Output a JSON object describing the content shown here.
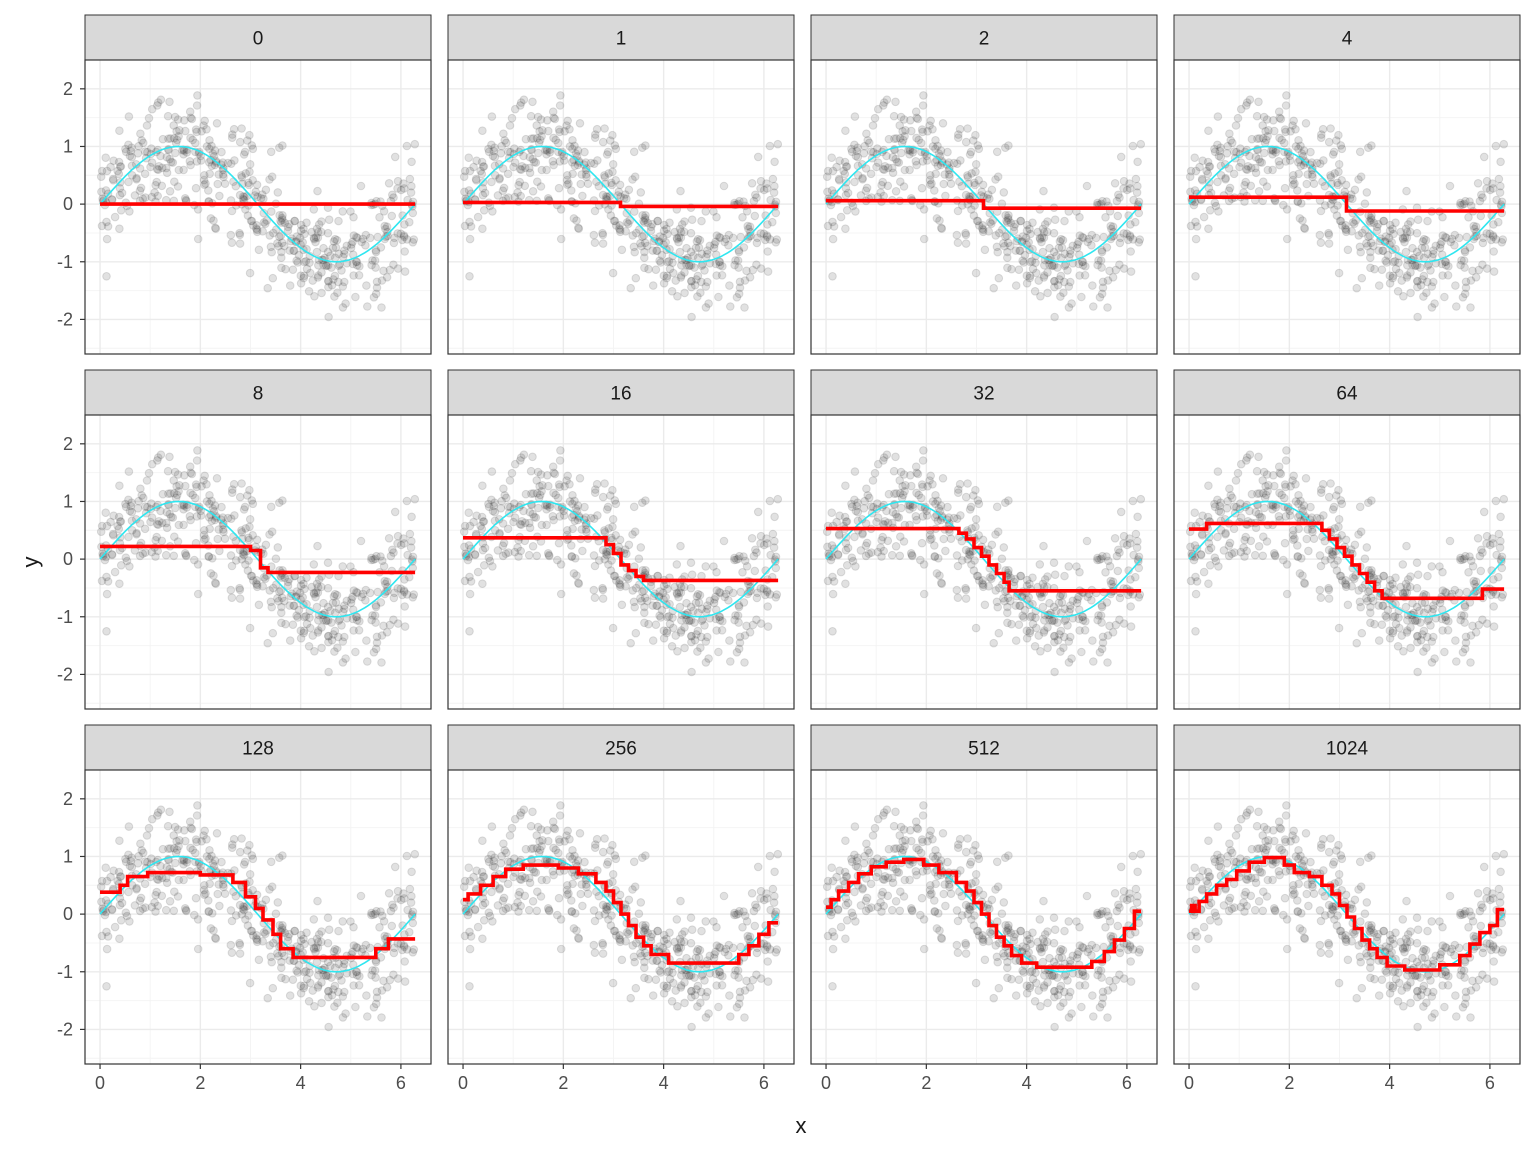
{
  "chart_data": {
    "type": "line",
    "xlabel": "x",
    "ylabel": "y",
    "xlim": [
      -0.3,
      6.6
    ],
    "ylim": [
      -2.6,
      2.5
    ],
    "x_ticks": [
      0,
      2,
      4,
      6
    ],
    "y_ticks": [
      -2,
      -1,
      0,
      1,
      2
    ],
    "grid": true,
    "legend": "none",
    "colors": {
      "true_function": "#2ee6f0",
      "fit": "#ff0000",
      "points": "#333333",
      "strip_bg": "#d9d9d9",
      "panel_border": "#333333",
      "grid_major": "#ebebeb",
      "grid_minor": "#f4f4f4"
    },
    "scatter": {
      "description_n_points": 1000,
      "model": "y = sin(x) + noise(sd 0.5)",
      "x_range": [
        0,
        6.283
      ],
      "opacity": 0.15
    },
    "true_function": {
      "name": "sin(x)",
      "x_range": [
        0,
        6.283
      ]
    },
    "panels": [
      {
        "label": "0",
        "fit": [
          [
            0,
            6.283,
            0.0
          ]
        ]
      },
      {
        "label": "1",
        "fit": [
          [
            0,
            3.14,
            0.03
          ],
          [
            3.14,
            6.283,
            -0.04
          ]
        ]
      },
      {
        "label": "2",
        "fit": [
          [
            0,
            3.14,
            0.06
          ],
          [
            3.14,
            6.283,
            -0.07
          ]
        ]
      },
      {
        "label": "4",
        "fit": [
          [
            0,
            3.14,
            0.12
          ],
          [
            3.14,
            6.283,
            -0.12
          ]
        ]
      },
      {
        "label": "8",
        "fit": [
          [
            0,
            3.0,
            0.22
          ],
          [
            3.0,
            3.2,
            0.15
          ],
          [
            3.2,
            3.35,
            -0.15
          ],
          [
            3.35,
            6.283,
            -0.23
          ]
        ]
      },
      {
        "label": "16",
        "fit": [
          [
            0,
            2.85,
            0.37
          ],
          [
            2.85,
            3.0,
            0.25
          ],
          [
            3.0,
            3.15,
            0.1
          ],
          [
            3.15,
            3.3,
            -0.1
          ],
          [
            3.3,
            3.45,
            -0.2
          ],
          [
            3.45,
            3.6,
            -0.3
          ],
          [
            3.6,
            6.283,
            -0.37
          ]
        ]
      },
      {
        "label": "32",
        "fit": [
          [
            0,
            2.65,
            0.53
          ],
          [
            2.65,
            2.8,
            0.45
          ],
          [
            2.8,
            2.95,
            0.35
          ],
          [
            2.95,
            3.1,
            0.2
          ],
          [
            3.1,
            3.25,
            0.05
          ],
          [
            3.25,
            3.4,
            -0.1
          ],
          [
            3.4,
            3.55,
            -0.25
          ],
          [
            3.55,
            3.65,
            -0.4
          ],
          [
            3.65,
            6.283,
            -0.55
          ]
        ]
      },
      {
        "label": "64",
        "fit": [
          [
            0,
            0.35,
            0.52
          ],
          [
            0.35,
            2.65,
            0.62
          ],
          [
            2.65,
            2.8,
            0.5
          ],
          [
            2.8,
            2.95,
            0.35
          ],
          [
            2.95,
            3.1,
            0.2
          ],
          [
            3.1,
            3.25,
            0.05
          ],
          [
            3.25,
            3.4,
            -0.1
          ],
          [
            3.4,
            3.55,
            -0.25
          ],
          [
            3.55,
            3.7,
            -0.4
          ],
          [
            3.7,
            3.85,
            -0.55
          ],
          [
            3.85,
            5.85,
            -0.68
          ],
          [
            5.85,
            6.283,
            -0.52
          ]
        ]
      },
      {
        "label": "128",
        "fit": [
          [
            0,
            0.4,
            0.38
          ],
          [
            0.4,
            0.55,
            0.5
          ],
          [
            0.55,
            0.95,
            0.65
          ],
          [
            0.95,
            2.0,
            0.72
          ],
          [
            2.0,
            2.65,
            0.68
          ],
          [
            2.65,
            2.9,
            0.55
          ],
          [
            2.9,
            3.1,
            0.3
          ],
          [
            3.1,
            3.25,
            0.1
          ],
          [
            3.25,
            3.45,
            -0.1
          ],
          [
            3.45,
            3.6,
            -0.35
          ],
          [
            3.6,
            3.85,
            -0.6
          ],
          [
            3.85,
            5.5,
            -0.75
          ],
          [
            5.5,
            5.75,
            -0.6
          ],
          [
            5.75,
            6.283,
            -0.43
          ]
        ]
      },
      {
        "label": "256",
        "fit": [
          [
            0,
            0.1,
            0.25
          ],
          [
            0.1,
            0.35,
            0.35
          ],
          [
            0.35,
            0.6,
            0.5
          ],
          [
            0.6,
            0.85,
            0.65
          ],
          [
            0.85,
            1.2,
            0.78
          ],
          [
            1.2,
            1.9,
            0.85
          ],
          [
            1.9,
            2.3,
            0.8
          ],
          [
            2.3,
            2.65,
            0.7
          ],
          [
            2.65,
            2.85,
            0.55
          ],
          [
            2.85,
            3.0,
            0.4
          ],
          [
            3.0,
            3.15,
            0.2
          ],
          [
            3.15,
            3.3,
            0.0
          ],
          [
            3.3,
            3.45,
            -0.2
          ],
          [
            3.45,
            3.6,
            -0.4
          ],
          [
            3.6,
            3.75,
            -0.55
          ],
          [
            3.75,
            4.1,
            -0.7
          ],
          [
            4.1,
            5.5,
            -0.85
          ],
          [
            5.5,
            5.7,
            -0.7
          ],
          [
            5.7,
            5.9,
            -0.55
          ],
          [
            5.9,
            6.1,
            -0.35
          ],
          [
            6.1,
            6.283,
            -0.15
          ]
        ]
      },
      {
        "label": "512",
        "fit": [
          [
            0,
            0.1,
            0.12
          ],
          [
            0.1,
            0.25,
            0.25
          ],
          [
            0.25,
            0.45,
            0.4
          ],
          [
            0.45,
            0.65,
            0.55
          ],
          [
            0.65,
            0.9,
            0.7
          ],
          [
            0.9,
            1.2,
            0.82
          ],
          [
            1.2,
            1.55,
            0.9
          ],
          [
            1.55,
            1.95,
            0.95
          ],
          [
            1.95,
            2.25,
            0.85
          ],
          [
            2.25,
            2.6,
            0.72
          ],
          [
            2.6,
            2.8,
            0.55
          ],
          [
            2.8,
            2.95,
            0.4
          ],
          [
            2.95,
            3.1,
            0.2
          ],
          [
            3.1,
            3.25,
            0.0
          ],
          [
            3.25,
            3.4,
            -0.2
          ],
          [
            3.4,
            3.55,
            -0.4
          ],
          [
            3.55,
            3.7,
            -0.55
          ],
          [
            3.7,
            3.9,
            -0.72
          ],
          [
            3.9,
            4.2,
            -0.85
          ],
          [
            4.2,
            5.3,
            -0.92
          ],
          [
            5.3,
            5.55,
            -0.82
          ],
          [
            5.55,
            5.75,
            -0.65
          ],
          [
            5.75,
            5.95,
            -0.45
          ],
          [
            5.95,
            6.15,
            -0.25
          ],
          [
            6.15,
            6.283,
            0.05
          ]
        ]
      },
      {
        "label": "1024",
        "fit": [
          [
            0,
            0.05,
            0.05
          ],
          [
            0.05,
            0.12,
            0.15
          ],
          [
            0.12,
            0.2,
            0.05
          ],
          [
            0.2,
            0.35,
            0.22
          ],
          [
            0.35,
            0.55,
            0.35
          ],
          [
            0.55,
            0.75,
            0.5
          ],
          [
            0.75,
            0.95,
            0.6
          ],
          [
            0.95,
            1.2,
            0.75
          ],
          [
            1.2,
            1.5,
            0.9
          ],
          [
            1.5,
            1.9,
            0.98
          ],
          [
            1.9,
            2.1,
            0.85
          ],
          [
            2.1,
            2.4,
            0.72
          ],
          [
            2.4,
            2.65,
            0.65
          ],
          [
            2.65,
            2.85,
            0.5
          ],
          [
            2.85,
            3.0,
            0.35
          ],
          [
            3.0,
            3.15,
            0.15
          ],
          [
            3.15,
            3.3,
            -0.05
          ],
          [
            3.3,
            3.45,
            -0.25
          ],
          [
            3.45,
            3.6,
            -0.45
          ],
          [
            3.6,
            3.75,
            -0.6
          ],
          [
            3.75,
            3.95,
            -0.75
          ],
          [
            3.95,
            4.3,
            -0.9
          ],
          [
            4.3,
            5.0,
            -0.97
          ],
          [
            5.0,
            5.4,
            -0.88
          ],
          [
            5.4,
            5.6,
            -0.72
          ],
          [
            5.6,
            5.8,
            -0.52
          ],
          [
            5.8,
            6.0,
            -0.32
          ],
          [
            6.0,
            6.15,
            -0.2
          ],
          [
            6.15,
            6.283,
            0.08
          ]
        ]
      }
    ]
  }
}
